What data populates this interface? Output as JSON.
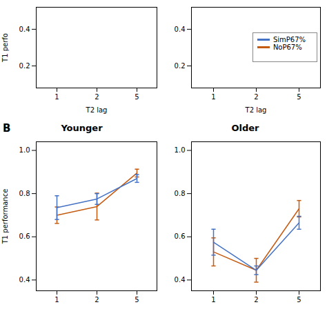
{
  "chart_data": [
    {
      "type": "line",
      "xlabel": "T2 lag",
      "ylabel": "T1 perfo",
      "categories": [
        "1",
        "2",
        "5"
      ],
      "ylim": [
        0.08,
        0.52
      ],
      "yticks": [
        0.2,
        0.4
      ],
      "series": []
    },
    {
      "type": "line",
      "xlabel": "T2 lag",
      "categories": [
        "1",
        "2",
        "5"
      ],
      "ylim": [
        0.08,
        0.52
      ],
      "yticks": [
        0.2,
        0.4
      ],
      "legend": "right",
      "series": [
        {
          "name": "SimP67%",
          "color": "#4472C4",
          "values": [
            null,
            null,
            null
          ]
        },
        {
          "name": "NoP67%",
          "color": "#C55A11",
          "values": [
            null,
            null,
            null
          ]
        }
      ]
    },
    {
      "type": "line",
      "title": "Younger",
      "ylabel": "T1 performance",
      "annotations": [
        "B"
      ],
      "categories": [
        "1",
        "2",
        "5"
      ],
      "ylim": [
        0.35,
        1.04
      ],
      "yticks": [
        0.4,
        0.6,
        0.8,
        {
          "value": 1,
          "label": "1.0"
        }
      ],
      "series": [
        {
          "name": "SimP67%",
          "color": "#4472C4",
          "values": [
            0.735,
            0.775,
            0.87
          ],
          "errors": [
            0.055,
            0.025,
            0.018
          ]
        },
        {
          "name": "NoP67%",
          "color": "#C55A11",
          "values": [
            0.7,
            0.74,
            0.895
          ],
          "errors": [
            0.038,
            0.062,
            0.018
          ]
        }
      ]
    },
    {
      "type": "line",
      "title": "Older",
      "categories": [
        "1",
        "2",
        "5"
      ],
      "ylim": [
        0.35,
        1.04
      ],
      "yticks": [
        0.4,
        0.6,
        0.8,
        {
          "value": 1,
          "label": "1.0"
        }
      ],
      "series": [
        {
          "name": "SimP67%",
          "color": "#4472C4",
          "values": [
            0.575,
            0.445,
            0.665
          ],
          "errors": [
            0.06,
            0.02,
            0.03
          ]
        },
        {
          "name": "NoP67%",
          "color": "#C55A11",
          "values": [
            0.53,
            0.445,
            0.73
          ],
          "errors": [
            0.065,
            0.055,
            0.038
          ]
        }
      ]
    }
  ]
}
